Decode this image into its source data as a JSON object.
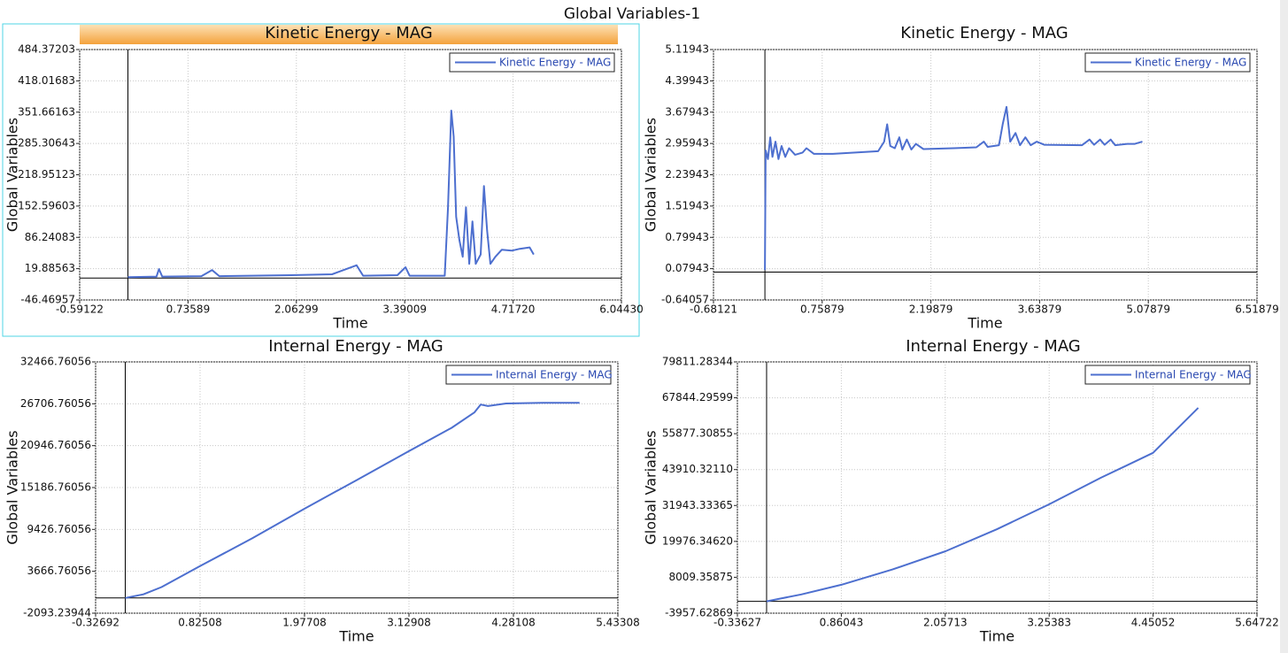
{
  "title": "Global Variables-1",
  "chart_data": [
    {
      "type": "line",
      "title": "Kinetic Energy - MAG",
      "xlabel": "Time",
      "ylabel": "Global Variables",
      "grid": true,
      "legend": "upper right",
      "xlim": [
        -0.59122,
        6.0443
      ],
      "xticks": [
        -0.59122,
        0.73589,
        2.06299,
        3.39009,
        {
          "value": 4.7172,
          "label": "4.71720"
        },
        {
          "value": 6.0443,
          "label": "6.04430"
        }
      ],
      "ylim": [
        -46.46957,
        484.37203
      ],
      "yticks": [
        -46.46957,
        19.88563,
        86.24083,
        152.59603,
        218.95123,
        285.30643,
        351.66163,
        418.01683,
        484.37203
      ],
      "x": [
        0,
        0.35,
        0.38,
        0.42,
        0.9,
        1.03,
        1.12,
        1.5,
        2.0,
        2.5,
        2.8,
        2.88,
        3.3,
        3.4,
        3.45,
        3.88,
        3.92,
        3.96,
        3.99,
        4.02,
        4.06,
        4.1,
        4.14,
        4.18,
        4.22,
        4.26,
        4.32,
        4.36,
        4.4,
        4.44,
        4.5,
        4.58,
        4.7,
        4.8,
        4.92,
        4.97
      ],
      "series": [
        {
          "name": "Kinetic Energy - MAG",
          "color": "#4d6fcf",
          "values": [
            2,
            3,
            19,
            3,
            4,
            17,
            4,
            5,
            6,
            8,
            27,
            5,
            6,
            23,
            5,
            5,
            150,
            355,
            300,
            130,
            80,
            45,
            150,
            30,
            120,
            30,
            50,
            195,
            100,
            30,
            45,
            60,
            58,
            62,
            65,
            50
          ]
        }
      ]
    },
    {
      "type": "line",
      "title": "Kinetic Energy - MAG",
      "xlabel": "Time",
      "ylabel": "Global Variables",
      "grid": true,
      "legend": "upper right",
      "xlim": [
        -0.68121,
        6.51879
      ],
      "xticks": [
        -0.68121,
        0.75879,
        2.19879,
        3.63879,
        5.07879,
        6.51879
      ],
      "ylim": [
        -0.64057,
        5.11943
      ],
      "yticks": [
        -0.64057,
        0.07943,
        0.79943,
        1.51943,
        2.23943,
        2.95943,
        3.67943,
        4.39943,
        5.11943
      ],
      "x": [
        0,
        0.01,
        0.04,
        0.07,
        0.1,
        0.14,
        0.18,
        0.22,
        0.27,
        0.32,
        0.4,
        0.5,
        0.55,
        0.65,
        0.9,
        1.2,
        1.5,
        1.58,
        1.62,
        1.66,
        1.72,
        1.78,
        1.82,
        1.88,
        1.94,
        2.0,
        2.1,
        2.5,
        2.8,
        2.9,
        2.95,
        3.1,
        3.15,
        3.2,
        3.25,
        3.32,
        3.38,
        3.45,
        3.52,
        3.6,
        3.7,
        4.2,
        4.3,
        4.36,
        4.44,
        4.5,
        4.58,
        4.64,
        4.8,
        4.9,
        5.0
      ],
      "series": [
        {
          "name": "Kinetic Energy - MAG",
          "color": "#4d6fcf",
          "values": [
            0.05,
            2.8,
            2.6,
            3.1,
            2.65,
            3.0,
            2.6,
            2.9,
            2.65,
            2.85,
            2.7,
            2.75,
            2.85,
            2.72,
            2.72,
            2.75,
            2.78,
            3.0,
            3.4,
            2.9,
            2.85,
            3.1,
            2.82,
            3.05,
            2.82,
            2.95,
            2.83,
            2.85,
            2.87,
            3.0,
            2.88,
            2.92,
            3.4,
            3.8,
            3.0,
            3.2,
            2.92,
            3.1,
            2.92,
            3.0,
            2.93,
            2.92,
            3.05,
            2.93,
            3.05,
            2.93,
            3.05,
            2.92,
            2.95,
            2.95,
            3.0
          ]
        }
      ]
    },
    {
      "type": "line",
      "title": "Internal Energy - MAG",
      "xlabel": "Time",
      "ylabel": "Global Variables",
      "grid": true,
      "legend": "upper right",
      "xlim": [
        -0.32692,
        5.43308
      ],
      "xticks": [
        -0.32692,
        0.82508,
        1.97708,
        3.12908,
        4.28108,
        5.43308
      ],
      "ylim": [
        -2093.23944,
        32466.76056
      ],
      "yticks": [
        -2093.23944,
        3666.76056,
        9426.76056,
        15186.76056,
        20946.76056,
        26706.76056,
        32466.76056
      ],
      "x": [
        0,
        0.2,
        0.4,
        0.82,
        1.4,
        1.98,
        2.55,
        3.13,
        3.6,
        3.85,
        3.92,
        4.0,
        4.2,
        4.6,
        5.01
      ],
      "series": [
        {
          "name": "Internal Energy - MAG",
          "color": "#4d6fcf",
          "values": [
            0,
            500,
            1500,
            4360,
            8200,
            12300,
            16200,
            20200,
            23400,
            25500,
            26600,
            26400,
            26750,
            26850,
            26850
          ]
        }
      ]
    },
    {
      "type": "line",
      "title": "Internal Energy - MAG",
      "xlabel": "Time",
      "ylabel": "Global Variables",
      "grid": true,
      "legend": "upper right",
      "xlim": [
        -0.33627,
        5.64722
      ],
      "xticks": [
        -0.33627,
        0.86043,
        2.05713,
        3.25383,
        4.45052,
        5.64722
      ],
      "ylim": [
        -3957.62869,
        79811.28344
      ],
      "yticks": [
        -3957.62869,
        8009.35875,
        {
          "value": 19976.3462,
          "label": "19976.34620"
        },
        31943.33365,
        {
          "value": 43910.3211,
          "label": "43910.32110"
        },
        55877.30855,
        67844.29599,
        79811.28344
      ],
      "x": [
        0,
        0.4,
        0.86,
        1.45,
        2.06,
        2.65,
        3.25,
        3.85,
        4.45,
        4.97
      ],
      "series": [
        {
          "name": "Internal Energy - MAG",
          "color": "#4d6fcf",
          "values": [
            0,
            2300,
            5500,
            10600,
            16700,
            24000,
            32300,
            41200,
            49500,
            64500
          ]
        }
      ]
    }
  ]
}
